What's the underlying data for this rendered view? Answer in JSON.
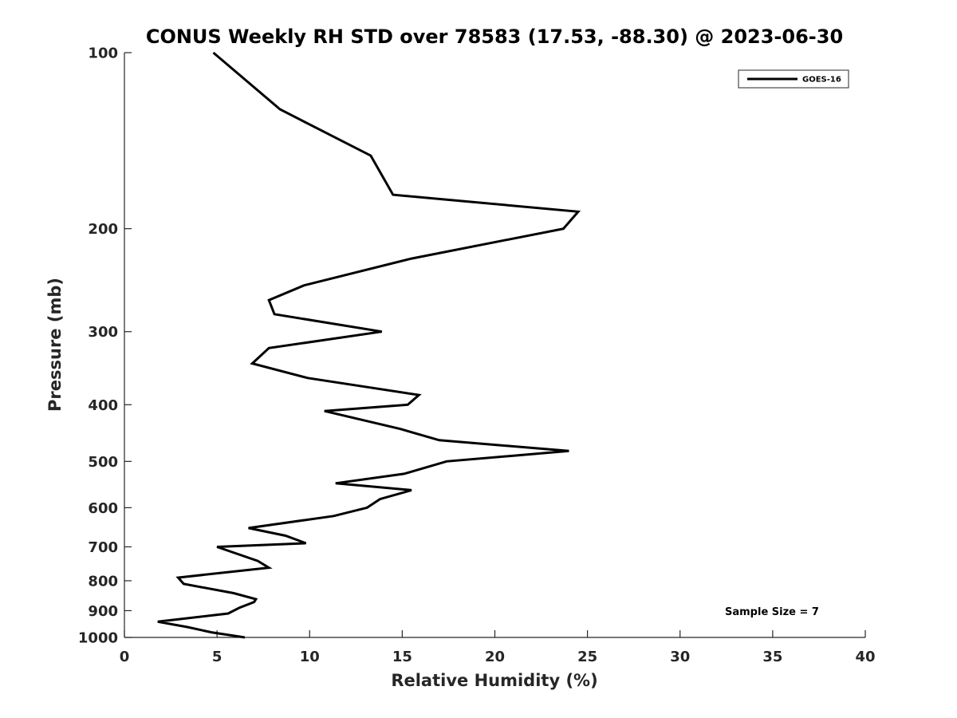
{
  "chart_data": {
    "type": "line",
    "title": "CONUS Weekly RH STD over 78583 (17.53, -88.30) @ 2023-06-30",
    "xlabel": "Relative Humidity (%)",
    "ylabel": "Pressure (mb)",
    "xlim": [
      0,
      40
    ],
    "ylim": [
      100,
      1000
    ],
    "y_scale": "log",
    "y_reversed": true,
    "grid": false,
    "legend_position": "top-right",
    "x_ticks": [
      0,
      5,
      10,
      15,
      20,
      25,
      30,
      35,
      40
    ],
    "x_tick_labels": [
      "0",
      "5",
      "10",
      "15",
      "20",
      "25",
      "30",
      "35",
      "40"
    ],
    "y_ticks": [
      100,
      200,
      300,
      400,
      500,
      600,
      700,
      800,
      900,
      1000
    ],
    "y_tick_labels": [
      "100",
      "200",
      "300",
      "400",
      "500",
      "600",
      "700",
      "800",
      "900",
      "1000"
    ],
    "series": [
      {
        "name": "GOES-16",
        "color": "#000000",
        "points": [
          [
            4.8,
            100
          ],
          [
            8.4,
            125
          ],
          [
            13.3,
            150
          ],
          [
            14.5,
            175
          ],
          [
            24.5,
            187
          ],
          [
            23.7,
            200
          ],
          [
            15.5,
            225
          ],
          [
            9.7,
            250
          ],
          [
            7.8,
            265
          ],
          [
            8.1,
            280
          ],
          [
            13.9,
            300
          ],
          [
            7.8,
            320
          ],
          [
            6.9,
            340
          ],
          [
            9.9,
            360
          ],
          [
            15.9,
            385
          ],
          [
            15.3,
            400
          ],
          [
            10.8,
            410
          ],
          [
            14.9,
            440
          ],
          [
            17.0,
            460
          ],
          [
            24.0,
            480
          ],
          [
            17.4,
            500
          ],
          [
            15.1,
            525
          ],
          [
            11.4,
            545
          ],
          [
            15.5,
            560
          ],
          [
            13.8,
            580
          ],
          [
            13.1,
            600
          ],
          [
            11.3,
            620
          ],
          [
            6.7,
            650
          ],
          [
            8.7,
            670
          ],
          [
            9.8,
            690
          ],
          [
            5.0,
            700
          ],
          [
            7.2,
            740
          ],
          [
            7.8,
            760
          ],
          [
            2.9,
            790
          ],
          [
            3.2,
            810
          ],
          [
            5.9,
            840
          ],
          [
            7.1,
            860
          ],
          [
            7.0,
            870
          ],
          [
            6.2,
            890
          ],
          [
            5.6,
            910
          ],
          [
            1.8,
            940
          ],
          [
            3.4,
            960
          ],
          [
            4.7,
            980
          ],
          [
            6.5,
            1000
          ]
        ]
      }
    ],
    "annotation": "Sample Size = 7"
  }
}
